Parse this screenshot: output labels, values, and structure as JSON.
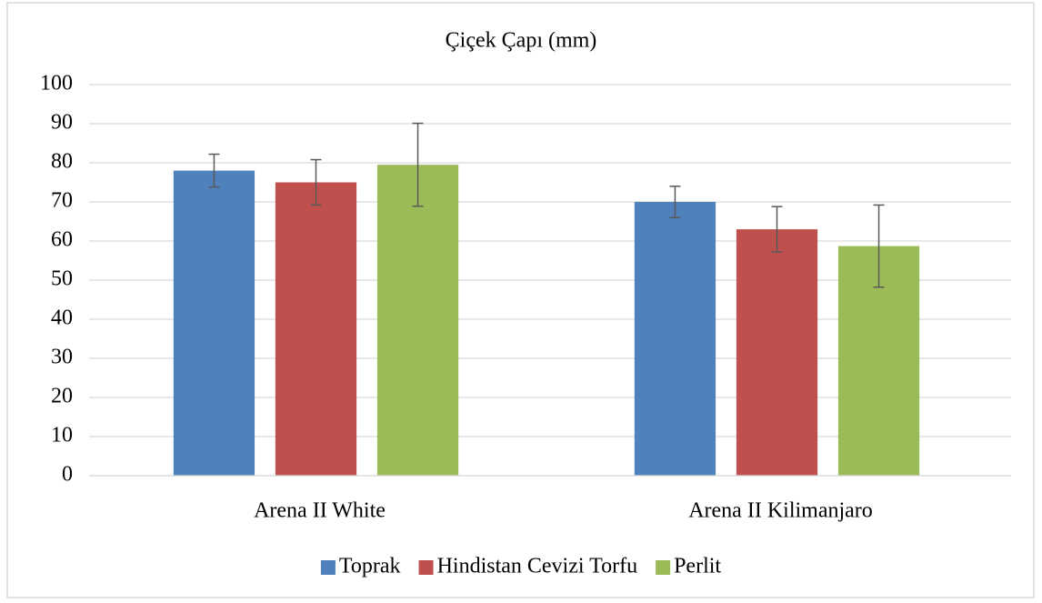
{
  "chart_data": {
    "type": "bar",
    "title": "Çiçek Çapı (mm)",
    "categories": [
      "Arena II White",
      "Arena II Kilimanjaro"
    ],
    "series": [
      {
        "name": "Toprak",
        "color": "#4f81bd",
        "values": [
          78,
          70
        ],
        "errors": [
          4.2,
          4
        ]
      },
      {
        "name": "Hindistan Cevizi Torfu",
        "color": "#c0504d",
        "values": [
          75,
          63
        ],
        "errors": [
          5.8,
          5.8
        ]
      },
      {
        "name": "Perlit",
        "color": "#9bbb59",
        "values": [
          79.5,
          58.7
        ],
        "errors": [
          10.6,
          10.5
        ]
      }
    ],
    "ylim": [
      0,
      100
    ],
    "yticks": [
      0,
      10,
      20,
      30,
      40,
      50,
      60,
      70,
      80,
      90,
      100
    ],
    "grid": true,
    "legend": "bottom"
  }
}
